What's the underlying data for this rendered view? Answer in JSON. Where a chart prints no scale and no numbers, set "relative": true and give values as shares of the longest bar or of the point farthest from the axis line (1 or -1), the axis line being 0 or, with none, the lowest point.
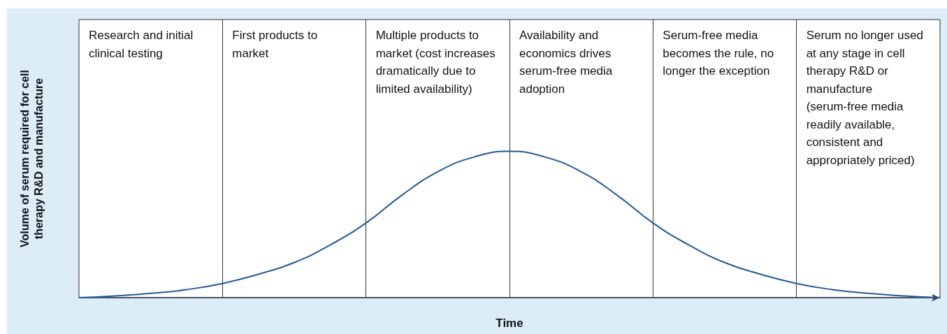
{
  "chart_data": {
    "type": "line",
    "relative": true,
    "xlabel": "Time",
    "ylabel": "Volume of serum required for cell therapy R&D and manufacture",
    "categories": [
      null,
      null,
      null,
      null,
      null,
      null,
      null,
      null,
      null,
      null,
      null,
      null,
      null,
      null,
      null,
      null,
      null,
      null,
      null,
      null,
      null,
      null,
      null,
      null,
      null
    ],
    "series": [
      {
        "color": "#1f5aa0",
        "values": [
          0,
          0.012,
          0.03,
          0.055,
          0.097,
          0.16,
          0.24,
          0.36,
          0.51,
          0.7,
          0.86,
          0.96,
          1,
          0.96,
          0.86,
          0.7,
          0.51,
          0.36,
          0.24,
          0.16,
          0.097,
          0.055,
          0.03,
          0.012,
          0
        ]
      }
    ],
    "grid": "x",
    "annotations": [
      "Research and initial clinical testing",
      "First products to market",
      "Multiple products to market (cost increases dramatically due to limited availability)",
      "Availability and economics drives serum-free media adoption",
      "Serum-free media becomes the rule, no longer the exception",
      "Serum no longer used at any stage in cell therapy R&D or manufacture (serum-free media readily available, consistent and appropriately priced)"
    ]
  }
}
